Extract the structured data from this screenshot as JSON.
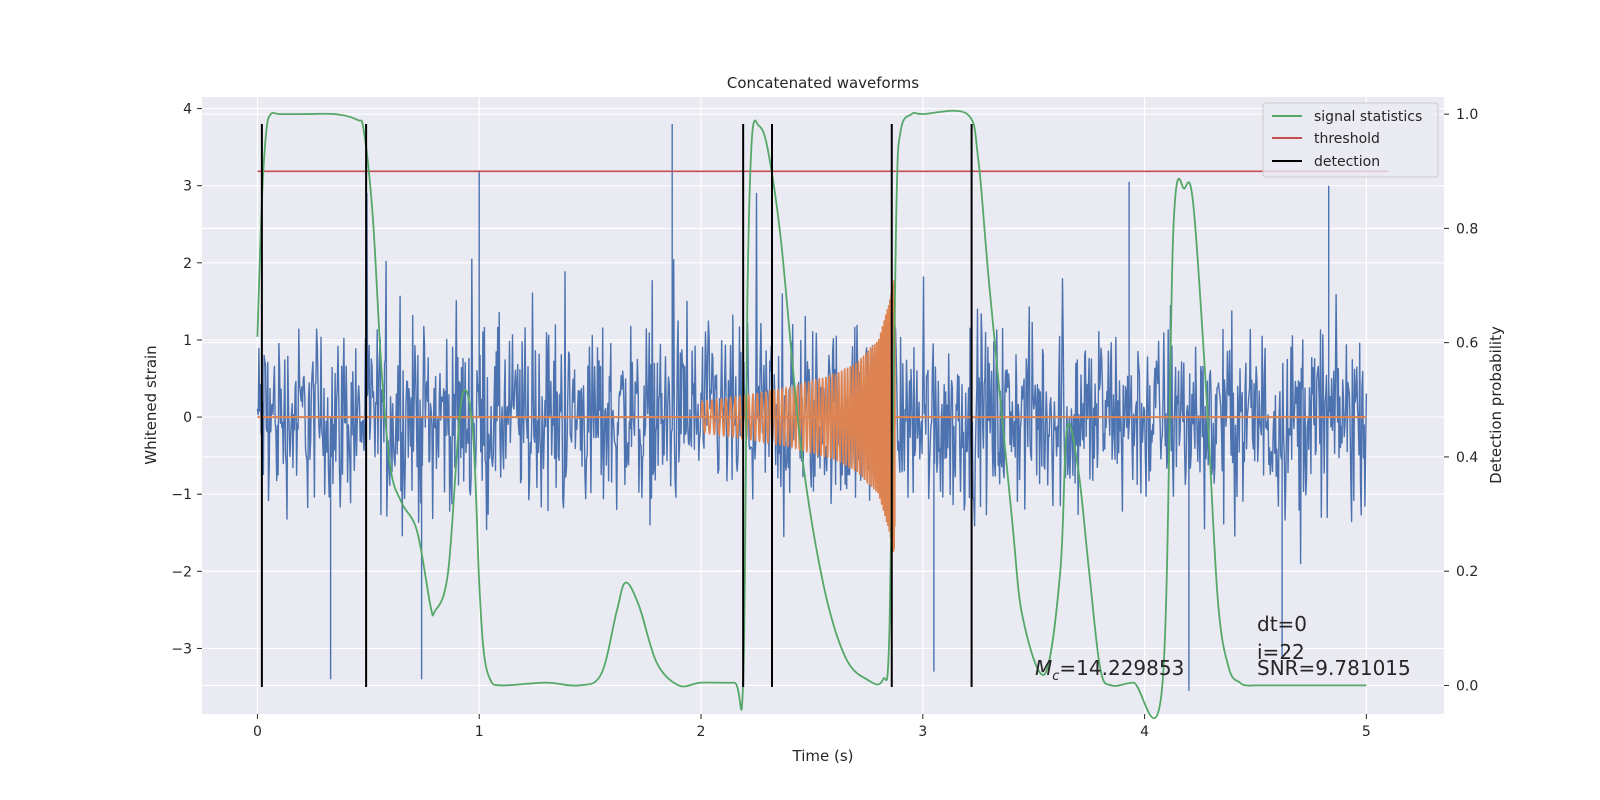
{
  "chart_data": {
    "type": "line",
    "title": "Concatenated waveforms",
    "xlabel": "Time (s)",
    "ylabel_left": "Whitened strain",
    "ylabel_right": "Detection probability",
    "xlim": [
      -0.25,
      5.35
    ],
    "ylim_left": [
      -3.85,
      4.15
    ],
    "ylim_right": [
      -0.05,
      1.03
    ],
    "x_ticks": [
      0,
      1,
      2,
      3,
      4,
      5
    ],
    "y_left_ticks": [
      -3,
      -2,
      -1,
      0,
      1,
      2,
      3,
      4
    ],
    "y_right_ticks": [
      0.0,
      0.2,
      0.4,
      0.6,
      0.8,
      1.0
    ],
    "y_right_tick_labels": [
      "0.0",
      "0.2",
      "0.4",
      "0.6",
      "0.8",
      "1.0"
    ],
    "grid": true,
    "legend_position": "top-right",
    "legend": [
      {
        "label": "signal statistics",
        "color": "#55a868"
      },
      {
        "label": "threshold",
        "color": "#c44e52"
      },
      {
        "label": "detection",
        "color": "#000000"
      }
    ],
    "series": [
      {
        "role": "whitened-strain-noise",
        "color": "#4c72b0",
        "x_range": [
          0,
          5
        ],
        "typical_amplitude": 1.5,
        "peaks": [
          [
            1.0,
            3.2
          ],
          [
            1.87,
            3.8
          ],
          [
            3.93,
            3.05
          ],
          [
            4.83,
            3.0
          ],
          [
            0.33,
            -3.4
          ],
          [
            0.74,
            -3.4
          ],
          [
            3.05,
            -3.3
          ],
          [
            4.2,
            -3.55
          ],
          [
            4.62,
            -3.1
          ]
        ]
      },
      {
        "role": "injected-chirp",
        "color": "#dd8452",
        "x": [
          2.0,
          2.2,
          2.4,
          2.6,
          2.7,
          2.8,
          2.85,
          2.87,
          2.9
        ],
        "envelope": [
          0.2,
          0.28,
          0.38,
          0.55,
          0.7,
          1.0,
          1.5,
          1.8,
          0.0
        ]
      },
      {
        "name": "signal statistics",
        "color": "#55a868",
        "axis": "right",
        "x": [
          0.0,
          0.02,
          0.04,
          0.06,
          0.1,
          0.2,
          0.35,
          0.45,
          0.48,
          0.52,
          0.56,
          0.6,
          0.65,
          0.72,
          0.78,
          0.8,
          0.86,
          0.92,
          0.97,
          1.0,
          1.02,
          1.05,
          1.1,
          1.3,
          1.45,
          1.55,
          1.62,
          1.66,
          1.72,
          1.8,
          1.9,
          2.0,
          2.15,
          2.19,
          2.21,
          2.23,
          2.26,
          2.3,
          2.36,
          2.45,
          2.55,
          2.65,
          2.75,
          2.82,
          2.85,
          2.88,
          2.9,
          2.95,
          3.0,
          3.2,
          3.25,
          3.3,
          3.4,
          3.45,
          3.55,
          3.62,
          3.65,
          3.7,
          3.75,
          3.8,
          3.85,
          3.95,
          4.08,
          4.13,
          4.18,
          4.22,
          4.28,
          4.33,
          4.38,
          4.43,
          4.46,
          4.5,
          4.6,
          5.0
        ],
        "values": [
          0.61,
          0.85,
          0.97,
          1.0,
          1.0,
          1.0,
          1.0,
          0.99,
          0.97,
          0.82,
          0.55,
          0.38,
          0.32,
          0.27,
          0.14,
          0.13,
          0.2,
          0.5,
          0.45,
          0.18,
          0.06,
          0.01,
          0.0,
          0.005,
          0.0,
          0.02,
          0.13,
          0.18,
          0.14,
          0.04,
          0.0,
          0.005,
          0.005,
          0.01,
          0.7,
          0.96,
          0.98,
          0.94,
          0.78,
          0.42,
          0.18,
          0.05,
          0.01,
          0.01,
          0.1,
          0.82,
          0.97,
          1.0,
          1.0,
          1.0,
          0.92,
          0.7,
          0.3,
          0.12,
          0.02,
          0.2,
          0.45,
          0.38,
          0.2,
          0.03,
          0.0,
          0.005,
          0.0,
          0.8,
          0.87,
          0.84,
          0.5,
          0.15,
          0.03,
          0.005,
          0.0,
          0.0,
          0.0,
          0.0
        ]
      },
      {
        "name": "threshold",
        "color": "#c44e52",
        "axis": "right",
        "x": [
          0.0,
          5.1
        ],
        "values": [
          0.9,
          0.9
        ]
      }
    ],
    "detections": [
      0.02,
      0.49,
      2.19,
      2.32,
      2.86,
      3.22
    ],
    "detection_y_range": [
      -3.5,
      3.8
    ],
    "annotations": {
      "mc_symbol": "M",
      "mc_subscript": "c",
      "mc_value": "=14.229853",
      "dt": "dt=0",
      "i": "i=22",
      "snr": "SNR=9.781015"
    }
  }
}
